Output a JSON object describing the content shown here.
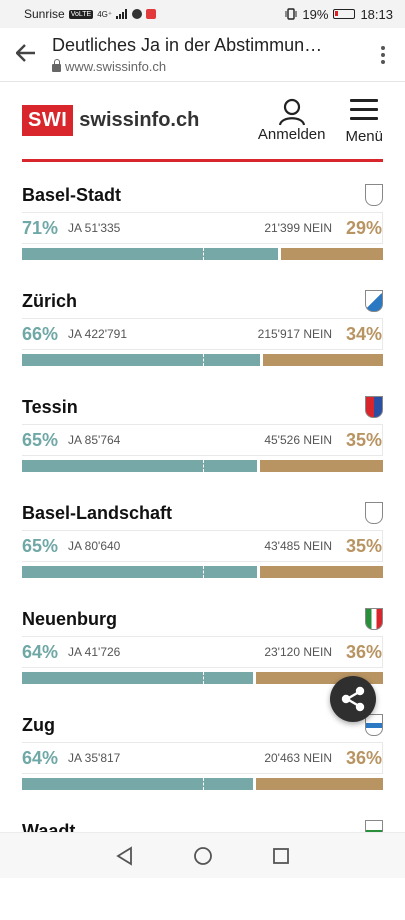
{
  "statusbar": {
    "carrier": "Sunrise",
    "net_badge": "VoLTE",
    "signal": "4G⁺",
    "battery": "19%",
    "time": "18:13"
  },
  "browser": {
    "title": "Deutliches Ja in der Abstimmun…",
    "url": "www.swissinfo.ch"
  },
  "header": {
    "logo_mark": "SWI",
    "logo_text": "swissinfo.ch",
    "login_label": "Anmelden",
    "menu_label": "Menü"
  },
  "colors": {
    "yes": "#75a8a6",
    "no": "#b89462",
    "brand": "#d8262c"
  },
  "cantons": [
    {
      "name": "Basel-Stadt",
      "yes_pct": "71%",
      "yes_abs": "JA 51'335",
      "no_abs": "21'399 NEIN",
      "no_pct": "29%",
      "yes_share": 71,
      "flag_icon": "basel-stadt-coat-icon"
    },
    {
      "name": "Zürich",
      "yes_pct": "66%",
      "yes_abs": "JA 422'791",
      "no_abs": "215'917 NEIN",
      "no_pct": "34%",
      "yes_share": 66,
      "flag_icon": "zurich-coat-icon"
    },
    {
      "name": "Tessin",
      "yes_pct": "65%",
      "yes_abs": "JA 85'764",
      "no_abs": "45'526 NEIN",
      "no_pct": "35%",
      "yes_share": 65,
      "flag_icon": "ticino-coat-icon"
    },
    {
      "name": "Basel-Landschaft",
      "yes_pct": "65%",
      "yes_abs": "JA 80'640",
      "no_abs": "43'485 NEIN",
      "no_pct": "35%",
      "yes_share": 65,
      "flag_icon": "basel-land-coat-icon"
    },
    {
      "name": "Neuenburg",
      "yes_pct": "64%",
      "yes_abs": "JA 41'726",
      "no_abs": "23'120 NEIN",
      "no_pct": "36%",
      "yes_share": 64,
      "flag_icon": "neuchatel-coat-icon"
    },
    {
      "name": "Zug",
      "yes_pct": "64%",
      "yes_abs": "JA 35'817",
      "no_abs": "20'463 NEIN",
      "no_pct": "36%",
      "yes_share": 64,
      "flag_icon": "zug-coat-icon"
    },
    {
      "name": "Waadt",
      "flag_icon": "vaud-coat-icon"
    }
  ]
}
